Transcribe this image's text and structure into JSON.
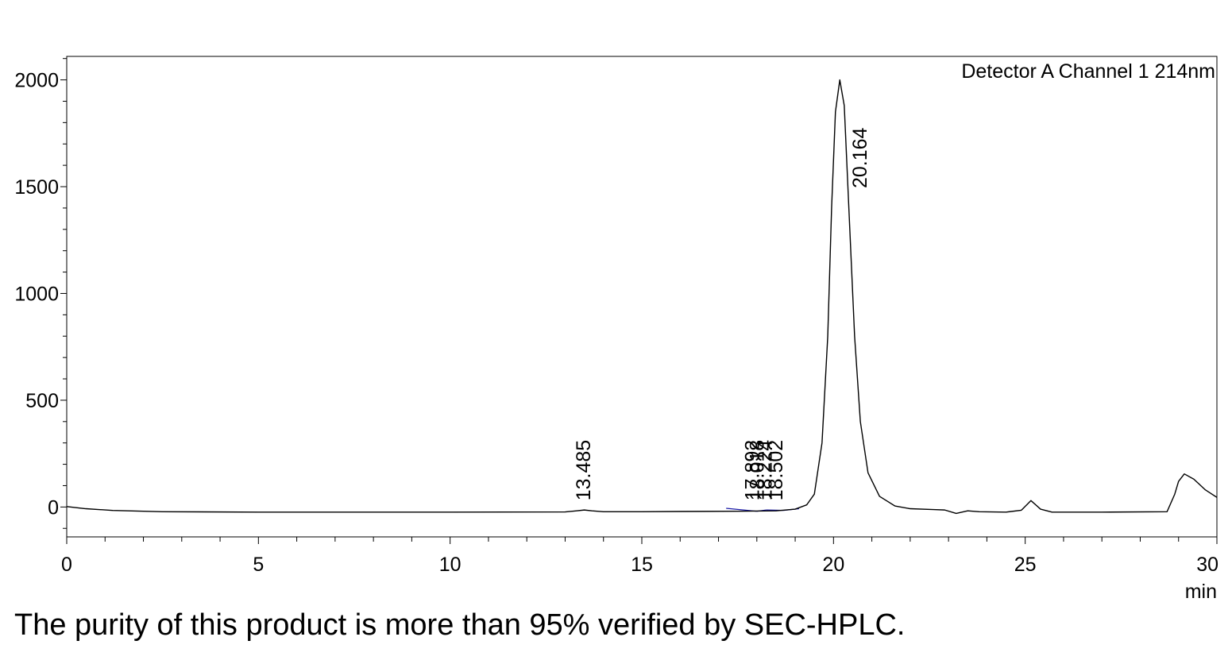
{
  "chart_data": {
    "type": "line",
    "title": "",
    "channel_label": "Detector A Channel 1 214nm",
    "xlabel": "min",
    "ylabel": "",
    "xlim": [
      0,
      30
    ],
    "ylim": [
      -140,
      2110
    ],
    "x_ticks": [
      0,
      5,
      10,
      15,
      20,
      25,
      30
    ],
    "y_ticks": [
      0,
      500,
      1000,
      1500,
      2000
    ],
    "grid": false,
    "baseline": [
      [
        0,
        2
      ],
      [
        0.5,
        -8
      ],
      [
        1.2,
        -16
      ],
      [
        2.5,
        -22
      ],
      [
        5,
        -24
      ],
      [
        10,
        -24
      ],
      [
        13.0,
        -23
      ],
      [
        13.3,
        -18
      ],
      [
        13.5,
        -14
      ],
      [
        13.7,
        -18
      ],
      [
        14.0,
        -22
      ],
      [
        15,
        -22
      ],
      [
        16,
        -21
      ],
      [
        17.5,
        -20
      ],
      [
        18.5,
        -18
      ],
      [
        19.0,
        -10
      ],
      [
        19.3,
        10
      ],
      [
        19.5,
        60
      ],
      [
        19.7,
        300
      ],
      [
        19.85,
        800
      ],
      [
        19.95,
        1400
      ],
      [
        20.05,
        1850
      ],
      [
        20.164,
        2000
      ],
      [
        20.28,
        1880
      ],
      [
        20.4,
        1400
      ],
      [
        20.55,
        800
      ],
      [
        20.7,
        400
      ],
      [
        20.9,
        160
      ],
      [
        21.2,
        50
      ],
      [
        21.6,
        5
      ],
      [
        22.0,
        -8
      ],
      [
        22.6,
        -12
      ],
      [
        22.9,
        -14
      ],
      [
        23.2,
        -30
      ],
      [
        23.5,
        -18
      ],
      [
        23.8,
        -22
      ],
      [
        24.5,
        -24
      ],
      [
        24.9,
        -15
      ],
      [
        25.15,
        30
      ],
      [
        25.4,
        -10
      ],
      [
        25.7,
        -24
      ],
      [
        27,
        -24
      ],
      [
        28.7,
        -22
      ],
      [
        28.9,
        60
      ],
      [
        29.0,
        120
      ],
      [
        29.15,
        155
      ],
      [
        29.4,
        130
      ],
      [
        29.7,
        80
      ],
      [
        30,
        45
      ]
    ],
    "peaks": [
      {
        "label": "13.485",
        "x": 13.485
      },
      {
        "label": "17.892",
        "x": 17.892
      },
      {
        "label": "18.018",
        "x": 18.018
      },
      {
        "label": "18.224",
        "x": 18.224
      },
      {
        "label": "18.502",
        "x": 18.502
      },
      {
        "label": "20.164",
        "x": 20.164
      }
    ],
    "colors": {
      "trace": "#000000",
      "baseline": "#1a1aa6"
    }
  },
  "caption": "The purity of this product is more than 95% verified by SEC-HPLC."
}
